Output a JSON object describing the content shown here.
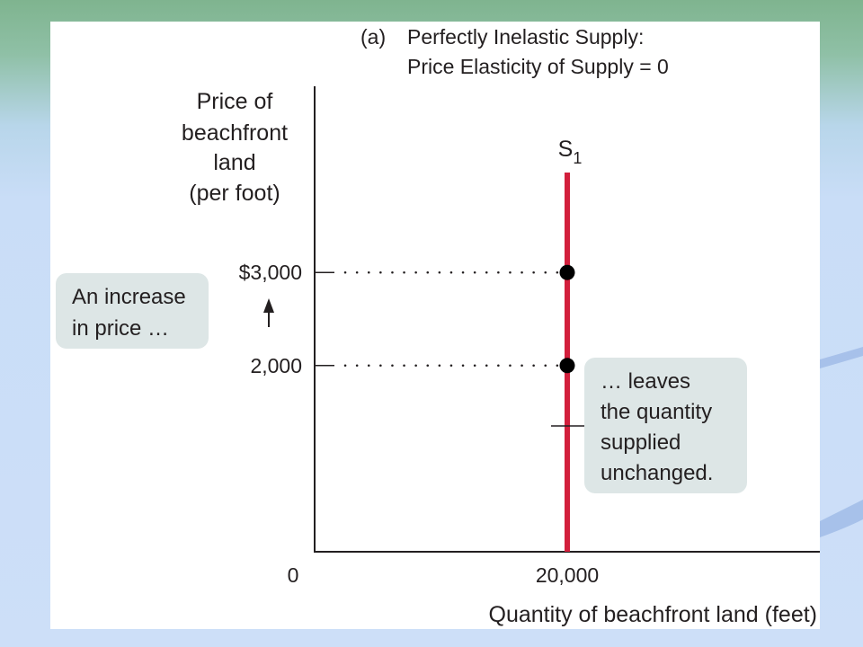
{
  "colors": {
    "supply_line": "#d21f3c",
    "text": "#231f20",
    "callout_bg": "#dde6e6",
    "panel_bg": "#ffffff"
  },
  "chart_data": {
    "type": "line",
    "title_prefix": "(a)",
    "title_lines": [
      "Perfectly Inelastic Supply:",
      "Price Elasticity of Supply = 0"
    ],
    "ylabel_lines": [
      "Price of",
      "beachfront",
      "land",
      "(per foot)"
    ],
    "xlabel": "Quantity of beachfront land (feet)",
    "origin_label": "0",
    "x_ticks": [
      {
        "value": 20000,
        "label": "20,000"
      }
    ],
    "y_ticks": [
      {
        "value": 3000,
        "label": "$3,000"
      },
      {
        "value": 2000,
        "label": "2,000"
      }
    ],
    "xlim": [
      0,
      40000
    ],
    "ylim": [
      0,
      5000
    ],
    "series": [
      {
        "name": "S",
        "subscript": "1",
        "points": [
          {
            "x": 20000,
            "y": 0
          },
          {
            "x": 20000,
            "y": 5000
          }
        ]
      }
    ],
    "points": [
      {
        "x": 20000,
        "y": 3000
      },
      {
        "x": 20000,
        "y": 2000
      }
    ],
    "annotations": [
      {
        "id": "price-increase",
        "lines": [
          "An increase",
          "in price …"
        ]
      },
      {
        "id": "quantity-unchanged",
        "lines": [
          "… leaves",
          "the quantity",
          "supplied",
          "unchanged."
        ]
      }
    ]
  }
}
